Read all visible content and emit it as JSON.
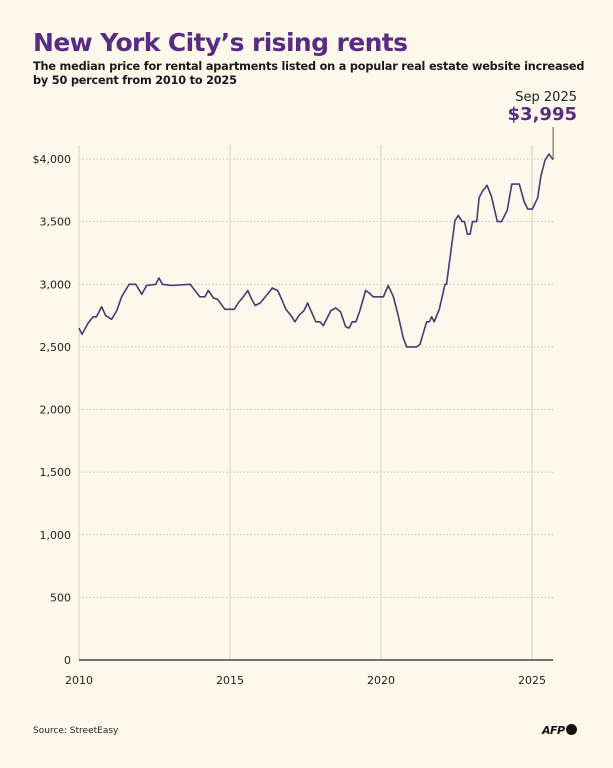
{
  "title": "New York City’s rising rents",
  "subtitle": "The median price for rental apartments listed on a popular real estate website increased by 50 percent from 2010 to 2025",
  "source": "Source: StreetEasy",
  "logo": "AFP",
  "colors": {
    "title": "#5a2b82",
    "line": "#4b3a6e",
    "background": "#fcf8eb",
    "annotation": "#5a2b82"
  },
  "chart_data": {
    "type": "line",
    "title": "New York City’s rising rents",
    "xlabel": "",
    "ylabel": "",
    "xlim": [
      2010,
      2025.7
    ],
    "ylim": [
      0,
      4000
    ],
    "grid": true,
    "x_ticks": [
      2010,
      2015,
      2020,
      2025
    ],
    "x_tick_labels": [
      "2010",
      "2015",
      "2020",
      "2025"
    ],
    "y_ticks": [
      0,
      500,
      1000,
      1500,
      2000,
      2500,
      3000,
      3500,
      4000
    ],
    "y_tick_labels": [
      "0",
      "500",
      "1,000",
      "1,500",
      "2,000",
      "2,500",
      "3,000",
      "3,500",
      "$4,000"
    ],
    "annotation": {
      "date": "Sep 2025",
      "value_label": "$3,995",
      "x": 2025.7,
      "y": 3995
    },
    "points": [
      [
        2010.0,
        2650
      ],
      [
        2010.1,
        2600
      ],
      [
        2010.3,
        2690
      ],
      [
        2010.47,
        2740
      ],
      [
        2010.58,
        2740
      ],
      [
        2010.75,
        2820
      ],
      [
        2010.88,
        2750
      ],
      [
        2011.08,
        2720
      ],
      [
        2011.25,
        2790
      ],
      [
        2011.41,
        2900
      ],
      [
        2011.66,
        3000
      ],
      [
        2011.88,
        3000
      ],
      [
        2012.08,
        2920
      ],
      [
        2012.24,
        2990
      ],
      [
        2012.54,
        3000
      ],
      [
        2012.65,
        3050
      ],
      [
        2012.76,
        3000
      ],
      [
        2013.07,
        2990
      ],
      [
        2013.68,
        3000
      ],
      [
        2014.0,
        2900
      ],
      [
        2014.17,
        2900
      ],
      [
        2014.28,
        2950
      ],
      [
        2014.45,
        2890
      ],
      [
        2014.59,
        2880
      ],
      [
        2014.83,
        2800
      ],
      [
        2015.14,
        2800
      ],
      [
        2015.27,
        2850
      ],
      [
        2015.44,
        2900
      ],
      [
        2015.59,
        2950
      ],
      [
        2015.7,
        2890
      ],
      [
        2015.83,
        2830
      ],
      [
        2016.0,
        2850
      ],
      [
        2016.14,
        2890
      ],
      [
        2016.4,
        2970
      ],
      [
        2016.58,
        2950
      ],
      [
        2016.73,
        2870
      ],
      [
        2016.85,
        2800
      ],
      [
        2017.02,
        2750
      ],
      [
        2017.15,
        2700
      ],
      [
        2017.28,
        2750
      ],
      [
        2017.45,
        2790
      ],
      [
        2017.57,
        2850
      ],
      [
        2017.68,
        2790
      ],
      [
        2017.84,
        2700
      ],
      [
        2017.98,
        2700
      ],
      [
        2018.09,
        2670
      ],
      [
        2018.34,
        2790
      ],
      [
        2018.5,
        2810
      ],
      [
        2018.66,
        2780
      ],
      [
        2018.83,
        2660
      ],
      [
        2018.94,
        2650
      ],
      [
        2019.05,
        2700
      ],
      [
        2019.17,
        2700
      ],
      [
        2019.3,
        2790
      ],
      [
        2019.49,
        2950
      ],
      [
        2019.61,
        2930
      ],
      [
        2019.74,
        2900
      ],
      [
        2020.08,
        2900
      ],
      [
        2020.24,
        2990
      ],
      [
        2020.41,
        2900
      ],
      [
        2020.57,
        2750
      ],
      [
        2020.74,
        2570
      ],
      [
        2020.85,
        2500
      ],
      [
        2021.18,
        2500
      ],
      [
        2021.29,
        2520
      ],
      [
        2021.51,
        2700
      ],
      [
        2021.6,
        2700
      ],
      [
        2021.68,
        2740
      ],
      [
        2021.76,
        2700
      ],
      [
        2021.93,
        2800
      ],
      [
        2022.12,
        3000
      ],
      [
        2022.17,
        3000
      ],
      [
        2022.45,
        3510
      ],
      [
        2022.56,
        3550
      ],
      [
        2022.69,
        3500
      ],
      [
        2022.76,
        3500
      ],
      [
        2022.86,
        3400
      ],
      [
        2022.95,
        3400
      ],
      [
        2023.03,
        3500
      ],
      [
        2023.17,
        3500
      ],
      [
        2023.25,
        3690
      ],
      [
        2023.35,
        3740
      ],
      [
        2023.51,
        3790
      ],
      [
        2023.66,
        3700
      ],
      [
        2023.85,
        3500
      ],
      [
        2023.99,
        3500
      ],
      [
        2024.18,
        3590
      ],
      [
        2024.33,
        3800
      ],
      [
        2024.58,
        3800
      ],
      [
        2024.74,
        3660
      ],
      [
        2024.86,
        3600
      ],
      [
        2025.01,
        3600
      ],
      [
        2025.19,
        3690
      ],
      [
        2025.29,
        3860
      ],
      [
        2025.43,
        3990
      ],
      [
        2025.56,
        4040
      ],
      [
        2025.62,
        4020
      ],
      [
        2025.7,
        3995
      ]
    ]
  }
}
